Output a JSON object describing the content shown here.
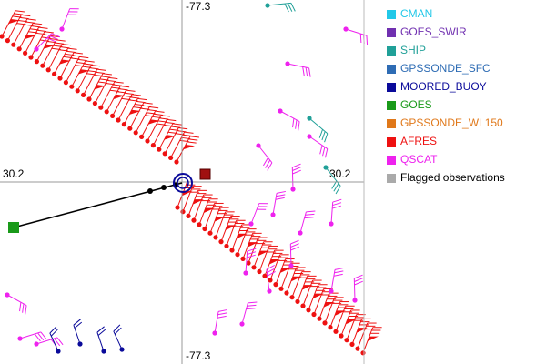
{
  "axis_labels": {
    "top": "-77.3",
    "bottom": "-77.3",
    "left": "30.2",
    "right": "30.2"
  },
  "legend": [
    {
      "label": "CMAN",
      "color": "#22c8e8"
    },
    {
      "label": "GOES_SWIR",
      "color": "#7030b0"
    },
    {
      "label": "SHIP",
      "color": "#20a098"
    },
    {
      "label": "GPSSONDE_SFC",
      "color": "#2e6cb4"
    },
    {
      "label": "MOORED_BUOY",
      "color": "#0a0a9a"
    },
    {
      "label": "GOES",
      "color": "#1a9a1a"
    },
    {
      "label": "GPSSONDE_WL150",
      "color": "#e0781a"
    },
    {
      "label": "AFRES",
      "color": "#ee1111"
    },
    {
      "label": "QSCAT",
      "color": "#ee22ee"
    },
    {
      "label": "Flagged observations",
      "color": "#aaaaaa"
    }
  ]
}
